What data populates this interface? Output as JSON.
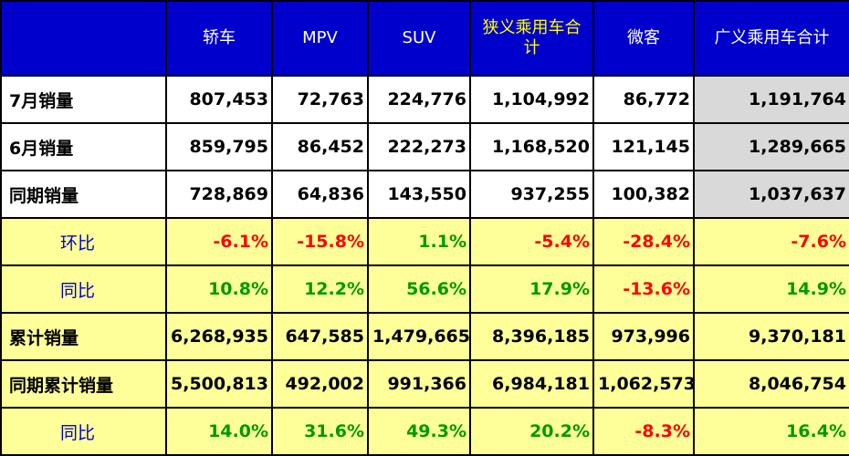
{
  "chart_data": {
    "type": "table",
    "columns": [
      "轿车",
      "MPV",
      "SUV",
      "狭义乘用车合计",
      "微客",
      "广义乘用车合计"
    ],
    "rows": [
      {
        "label": "7月销量",
        "values": [
          "807,453",
          "72,763",
          "224,776",
          "1,104,992",
          "86,772",
          "1,191,764"
        ]
      },
      {
        "label": "6月销量",
        "values": [
          "859,795",
          "86,452",
          "222,273",
          "1,168,520",
          "121,145",
          "1,289,665"
        ]
      },
      {
        "label": "同期销量",
        "values": [
          "728,869",
          "64,836",
          "143,550",
          "937,255",
          "100,382",
          "1,037,637"
        ]
      },
      {
        "label": "环比",
        "values": [
          "-6.1%",
          "-15.8%",
          "1.1%",
          "-5.4%",
          "-28.4%",
          "-7.6%"
        ]
      },
      {
        "label": "同比",
        "values": [
          "10.8%",
          "12.2%",
          "56.6%",
          "17.9%",
          "-13.6%",
          "14.9%"
        ]
      },
      {
        "label": "累计销量",
        "values": [
          "6,268,935",
          "647,585",
          "1,479,665",
          "8,396,185",
          "973,996",
          "9,370,181"
        ]
      },
      {
        "label": "同期累计销量",
        "values": [
          "5,500,813",
          "492,002",
          "991,366",
          "6,984,181",
          "1,062,573",
          "8,046,754"
        ]
      },
      {
        "label": "同比",
        "values": [
          "14.0%",
          "31.6%",
          "49.3%",
          "20.2%",
          "-8.3%",
          "16.4%"
        ]
      }
    ]
  },
  "colors": {
    "header_bg": "#0000cc",
    "header_text": "#ffffff",
    "header_highlight_text": "#ffff00",
    "ratio_row_bg": "#ffff99",
    "summary_col_bg": "#d9d9d9",
    "positive": "#009900",
    "negative": "#ff0000",
    "ratio_label": "#0000cc"
  }
}
